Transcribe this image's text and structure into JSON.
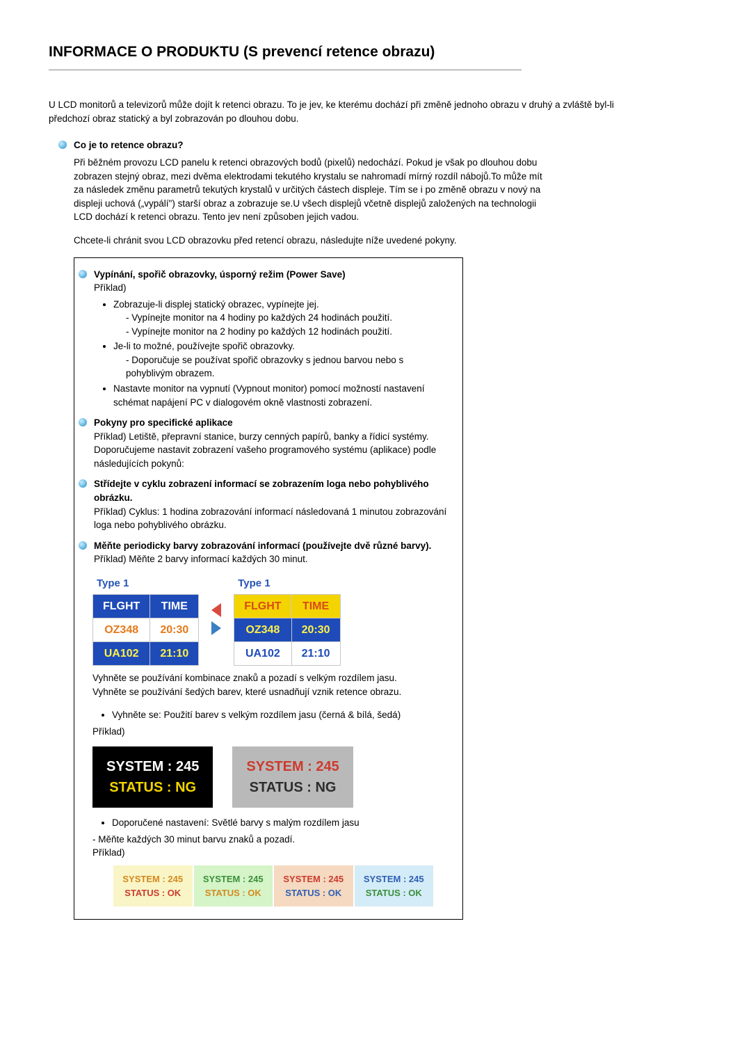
{
  "title": "INFORMACE O PRODUKTU (S prevencí retence obrazu)",
  "intro": "U LCD monitorů a televizorů může dojít k retenci obrazu. To je jev, ke kterému dochází při změně jednoho obrazu v druhý a zvláště byl-li předchozí obraz statický a byl zobrazován po dlouhou dobu.",
  "s1": {
    "title": "Co je to retence obrazu?",
    "p1": "Při běžném provozu LCD panelu k retenci obrazových bodů (pixelů) nedochází. Pokud je však po dlouhou dobu zobrazen stejný obraz, mezi dvěma elektrodami tekutého krystalu se nahromadí mírný rozdíl nábojů.To může mít za následek změnu parametrů tekutých krystalů v určitých částech displeje. Tím se i po změně obrazu v nový na displeji uchová („vypálí\") starší obraz a zobrazuje se.U všech displejů včetně displejů založených na technologii LCD dochází k retenci obrazu. Tento jev není způsoben jejich vadou.",
    "p2": "Chcete-li chránit svou LCD obrazovku před retencí obrazu, následujte níže uvedené pokyny."
  },
  "box": {
    "i1": {
      "title": "Vypínání, spořič obrazovky, úsporný režim (Power Save)",
      "ex": "Příklad)",
      "b1": "Zobrazuje-li displej statický obrazec, vypínejte jej.",
      "b1a": "- Vypínejte monitor na 4 hodiny po každých 24 hodinách použití.",
      "b1b": "- Vypínejte monitor na 2 hodiny po každých 12 hodinách použití.",
      "b2": "Je-li to možné, používejte spořič obrazovky.",
      "b2a": "- Doporučuje se používat spořič obrazovky s jednou barvou nebo s pohyblivým obrazem.",
      "b3": "Nastavte monitor na vypnutí (Vypnout monitor) pomocí možností nastavení schémat napájení PC v dialogovém okně vlastnosti zobrazení."
    },
    "i2": {
      "title": "Pokyny pro specifické aplikace",
      "p1": "Příklad) Letiště, přepravní stanice, burzy cenných papírů, banky a řídicí systémy.",
      "p2": "Doporučujeme nastavit zobrazení vašeho programového systému (aplikace) podle následujících pokynů:"
    },
    "i3": {
      "title": "Střídejte v cyklu zobrazení informací se zobrazením loga nebo pohyblivého obrázku.",
      "p": "Příklad) Cyklus: 1 hodina zobrazování informací následovaná 1 minutou zobrazování loga nebo pohyblivého obrázku."
    },
    "i4": {
      "title": "Měňte periodicky barvy zobrazování informací (používejte dvě různé barvy).",
      "p": "Příklad) Měňte 2 barvy informací každých 30 minut."
    },
    "flight": {
      "type_label": "Type 1",
      "h1": "FLGHT",
      "h2": "TIME",
      "r1c1": "OZ348",
      "r1c2": "20:30",
      "r2c1": "UA102",
      "r2c2": "21:10",
      "left": {
        "h_bg": "#1e4bb8",
        "h_fg": "#ffffff",
        "r1_bg": "#ffffff",
        "r1_fg": "#e67a1a",
        "r2_bg": "#1e4bb8",
        "r2_fg": "#fff04a"
      },
      "right": {
        "h_bg": "#f4d400",
        "h_fg": "#d84a1a",
        "r1_bg": "#1e4bb8",
        "r1_fg": "#fff04a",
        "r2_bg": "#ffffff",
        "r2_fg": "#1e4bb8"
      }
    },
    "after_flight": {
      "p1": "Vyhněte se používání kombinace znaků a pozadí s velkým rozdílem jasu.",
      "p2": "Vyhněte se používání šedých barev, které usnadňují vznik retence obrazu.",
      "b": "Vyhněte se: Použití barev s velkým rozdílem jasu (černá & bílá, šedá)",
      "ex": "Příklad)"
    },
    "sys1": {
      "system": "SYSTEM : 245",
      "status": "STATUS : NG",
      "left_bg": "#000000",
      "left_sys": "#ffffff",
      "left_stat": "#f2d400",
      "right_bg": "#b9b9b9",
      "right_sys": "#ce3a2e",
      "right_stat": "#2d2d2d"
    },
    "rec": {
      "b": "Doporučené nastavení: Světlé barvy s malým rozdílem jasu",
      "p": "- Měňte každých 30 minut barvu znaků a pozadí.",
      "ex": "Příklad)"
    },
    "sys2": {
      "system": "SYSTEM : 245",
      "status": "STATUS : OK",
      "cells": [
        {
          "bg": "#f9f5c6",
          "sys": "#d4891f",
          "stat": "#cc3a2e"
        },
        {
          "bg": "#d5f4c8",
          "sys": "#3a8f3a",
          "stat": "#d4891f"
        },
        {
          "bg": "#f5d9c0",
          "sys": "#cc3a2e",
          "stat": "#2e5fb5"
        },
        {
          "bg": "#d4ecf7",
          "sys": "#2e5fb5",
          "stat": "#3a8f3a"
        }
      ]
    }
  }
}
